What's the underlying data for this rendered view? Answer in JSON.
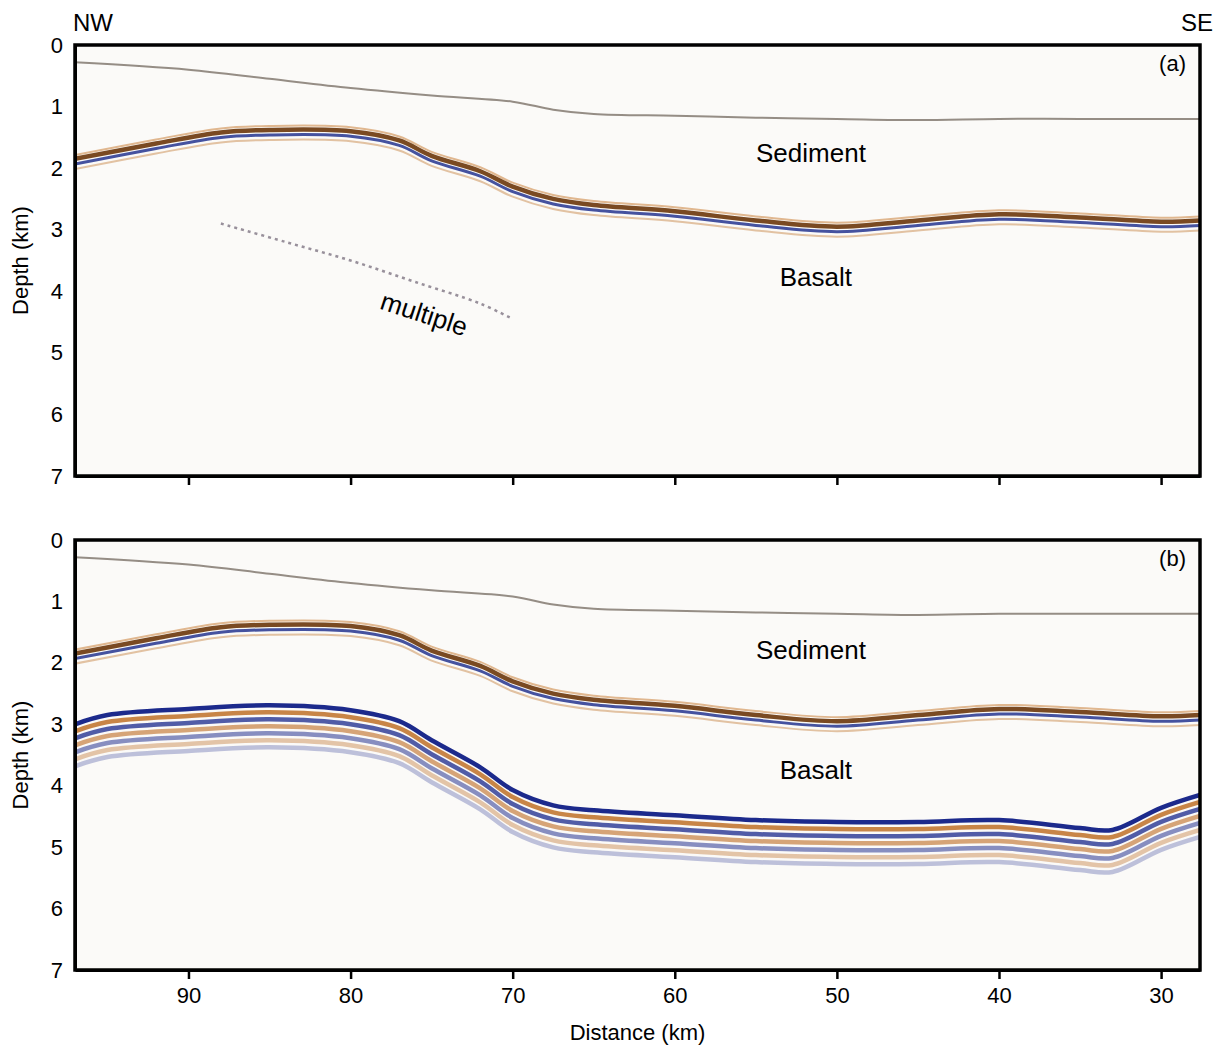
{
  "chart_data": [
    {
      "type": "line",
      "title": "(a)",
      "x_end_labels": [
        "NW",
        "SE"
      ],
      "ylabel": "Depth (km)",
      "xlim": [
        97,
        27.6
      ],
      "ylim": [
        0,
        7
      ],
      "xticks": [
        90,
        80,
        70,
        60,
        50,
        40,
        30
      ],
      "yticks": [
        0,
        1,
        2,
        3,
        4,
        5,
        6,
        7
      ],
      "tick_labels": "y",
      "grid": false,
      "series": [
        {
          "x": [
            97,
            90,
            85,
            80,
            75,
            70,
            67.5,
            65,
            60,
            55,
            50,
            45,
            40,
            35,
            30,
            27.6
          ],
          "values": [
            0.28,
            0.4,
            0.55,
            0.7,
            0.82,
            0.92,
            1.05,
            1.12,
            1.15,
            1.18,
            1.2,
            1.22,
            1.2,
            1.2,
            1.2,
            1.2
          ],
          "color": "#8a8178",
          "line_style": "solid"
        },
        {
          "x": [
            97,
            92,
            88,
            85,
            80,
            77,
            75,
            72,
            70,
            67.5,
            65,
            60,
            55,
            50,
            45,
            40,
            35,
            30,
            27.6
          ],
          "values": [
            1.85,
            1.6,
            1.42,
            1.38,
            1.4,
            1.55,
            1.8,
            2.05,
            2.3,
            2.5,
            2.6,
            2.7,
            2.85,
            2.95,
            2.85,
            2.75,
            2.8,
            2.87,
            2.85
          ],
          "color": "#7a4a22",
          "line_style": "double"
        },
        {
          "x": [
            88,
            84,
            80,
            76,
            72,
            70
          ],
          "values": [
            2.9,
            3.2,
            3.5,
            3.85,
            4.2,
            4.45
          ],
          "color": "#8d8490",
          "line_style": "dotted"
        }
      ],
      "annotations": [
        {
          "text": "Sediment",
          "x": 51.6,
          "y": 1.79
        },
        {
          "text": "Basalt",
          "x": 51.3,
          "y": 3.8
        },
        {
          "text": "multiple",
          "x": 75.5,
          "y": 4.4
        }
      ]
    },
    {
      "type": "line",
      "title": "(b)",
      "xlabel": "Distance (km)",
      "ylabel": "Depth (km)",
      "xlim": [
        97,
        27.6
      ],
      "ylim": [
        0,
        7
      ],
      "xticks": [
        90,
        80,
        70,
        60,
        50,
        40,
        30
      ],
      "yticks": [
        0,
        1,
        2,
        3,
        4,
        5,
        6,
        7
      ],
      "grid": false,
      "series": [
        {
          "x": [
            97,
            90,
            85,
            80,
            75,
            70,
            67.5,
            65,
            60,
            55,
            50,
            45,
            40,
            35,
            30,
            27.6
          ],
          "values": [
            0.28,
            0.4,
            0.55,
            0.7,
            0.82,
            0.92,
            1.05,
            1.12,
            1.15,
            1.18,
            1.2,
            1.22,
            1.2,
            1.2,
            1.2,
            1.2
          ],
          "color": "#8a8178",
          "line_style": "solid"
        },
        {
          "x": [
            97,
            92,
            88,
            85,
            80,
            77,
            75,
            72,
            70,
            67.5,
            65,
            60,
            55,
            50,
            45,
            40,
            35,
            30,
            27.6
          ],
          "values": [
            1.85,
            1.6,
            1.42,
            1.38,
            1.4,
            1.55,
            1.8,
            2.05,
            2.3,
            2.5,
            2.6,
            2.7,
            2.85,
            2.95,
            2.85,
            2.75,
            2.8,
            2.87,
            2.85
          ],
          "color": "#7a4a22",
          "line_style": "double"
        },
        {
          "x": [
            97,
            95,
            90,
            85,
            80,
            77,
            75,
            72,
            70,
            67.5,
            65,
            60,
            55,
            50,
            45,
            40,
            35,
            33,
            30,
            27.6
          ],
          "values": [
            3.0,
            2.85,
            2.75,
            2.69,
            2.77,
            2.95,
            3.26,
            3.7,
            4.07,
            4.32,
            4.4,
            4.48,
            4.56,
            4.59,
            4.59,
            4.56,
            4.69,
            4.72,
            4.36,
            4.15
          ],
          "color": "#1c2a8c",
          "line_style": "banded"
        }
      ],
      "annotations": [
        {
          "text": "Sediment",
          "x": 51.6,
          "y": 1.82
        },
        {
          "text": "Basalt",
          "x": 51.3,
          "y": 3.78
        }
      ]
    }
  ]
}
